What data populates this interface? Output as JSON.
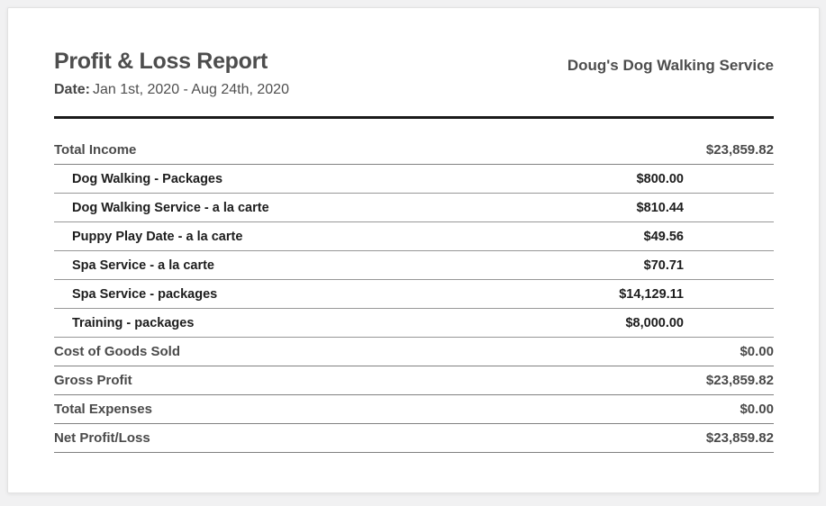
{
  "header": {
    "title": "Profit & Loss Report",
    "company": "Doug's Dog Walking Service",
    "date_label": "Date:",
    "date_value": "Jan 1st, 2020 - Aug 24th, 2020"
  },
  "report": {
    "rows": [
      {
        "label": "Total Income",
        "amount": "$23,859.82",
        "type": "total"
      },
      {
        "label": "Dog Walking - Packages",
        "amount": "$800.00",
        "type": "item"
      },
      {
        "label": "Dog Walking Service - a la carte",
        "amount": "$810.44",
        "type": "item"
      },
      {
        "label": "Puppy Play Date - a la carte",
        "amount": "$49.56",
        "type": "item"
      },
      {
        "label": "Spa Service - a la carte",
        "amount": "$70.71",
        "type": "item"
      },
      {
        "label": "Spa Service - packages",
        "amount": "$14,129.11",
        "type": "item"
      },
      {
        "label": "Training - packages",
        "amount": "$8,000.00",
        "type": "item"
      },
      {
        "label": "Cost of Goods Sold",
        "amount": "$0.00",
        "type": "total"
      },
      {
        "label": "Gross Profit",
        "amount": "$23,859.82",
        "type": "total"
      },
      {
        "label": "Total Expenses",
        "amount": "$0.00",
        "type": "total"
      },
      {
        "label": "Net Profit/Loss",
        "amount": "$23,859.82",
        "type": "total"
      }
    ]
  },
  "colors": {
    "page_background": "#f1f1f2",
    "card_background": "#ffffff",
    "card_border": "#e2e2e2",
    "heading_text": "#4d4d4d",
    "item_text": "#1d1d1d",
    "thick_rule": "#1b1b1b",
    "row_divider": "#8d8d8d"
  }
}
